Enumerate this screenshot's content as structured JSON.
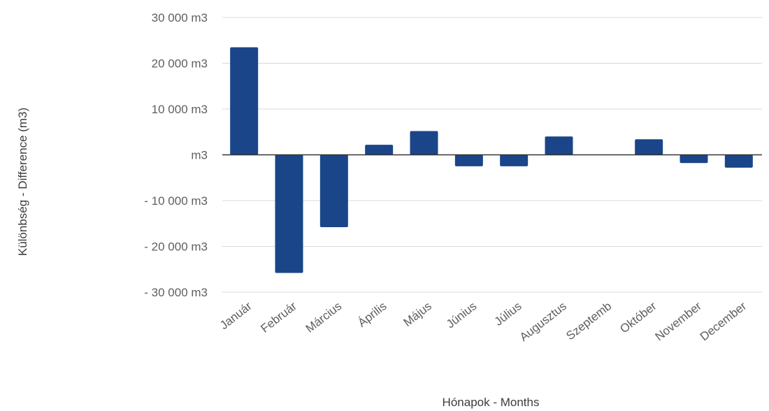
{
  "chart_data": {
    "type": "bar",
    "xlabel": "Hónapok - Months",
    "ylabel": "Különbség - Difference (m3)",
    "ylim": [
      -30000,
      30000
    ],
    "y_ticks": [
      {
        "value": 30000,
        "label": "30 000  m3"
      },
      {
        "value": 20000,
        "label": "20 000  m3"
      },
      {
        "value": 10000,
        "label": "10 000  m3"
      },
      {
        "value": 0,
        "label": "m3"
      },
      {
        "value": -10000,
        "label": "- 10 000  m3"
      },
      {
        "value": -20000,
        "label": "- 20 000  m3"
      },
      {
        "value": -30000,
        "label": "- 30 000  m3"
      }
    ],
    "categories": [
      "Január",
      "Február",
      "Március",
      "Április",
      "Május",
      "Június",
      "Július",
      "Augusztus",
      "Szeptemb",
      "Október",
      "November",
      "December"
    ],
    "values": [
      23500,
      -25800,
      -15800,
      2200,
      5200,
      -2500,
      -2500,
      4000,
      0,
      3400,
      -1800,
      -2800
    ],
    "bar_color": "#1a4589",
    "grid": true
  }
}
